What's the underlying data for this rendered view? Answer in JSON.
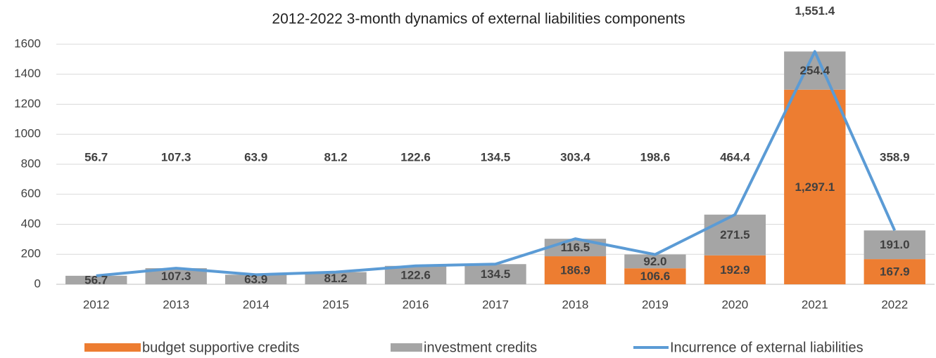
{
  "chart_data": {
    "type": "stacked-bar-line",
    "title": "2012-2022 3-month dynamics of external liabilities components",
    "categories": [
      "2012",
      "2013",
      "2014",
      "2015",
      "2016",
      "2017",
      "2018",
      "2019",
      "2020",
      "2021",
      "2022"
    ],
    "series": [
      {
        "name": "budget supportive credits",
        "color": "#ed7d31",
        "kind": "bar",
        "values": [
          null,
          null,
          null,
          null,
          null,
          null,
          186.9,
          106.6,
          192.9,
          1297.1,
          167.9
        ],
        "value_labels": [
          null,
          null,
          null,
          null,
          null,
          null,
          "186.9",
          "106.6",
          "192.9",
          "1,297.1",
          "167.9"
        ]
      },
      {
        "name": "investment credits",
        "color": "#a5a5a5",
        "kind": "bar",
        "values": [
          56.7,
          107.3,
          63.9,
          81.2,
          122.6,
          134.5,
          116.5,
          92.0,
          271.5,
          254.4,
          191.0
        ],
        "value_labels": [
          "56.7",
          "107.3",
          "63.9",
          "81.2",
          "122.6",
          "134.5",
          "116.5",
          "92.0",
          "271.5",
          "254.4",
          "191.0"
        ]
      },
      {
        "name": "Incurrence of external liabilities",
        "color": "#5b9bd5",
        "kind": "line",
        "values": [
          56.7,
          107.3,
          63.9,
          81.2,
          122.6,
          134.5,
          303.4,
          198.6,
          464.4,
          1551.4,
          358.9
        ],
        "value_labels": [
          "56.7",
          "107.3",
          "63.9",
          "81.2",
          "122.6",
          "134.5",
          "303.4",
          "198.6",
          "464.4",
          "1,551.4",
          "358.9"
        ]
      }
    ],
    "ylim": [
      0,
      1600
    ],
    "yticks": [
      0,
      200,
      400,
      600,
      800,
      1000,
      1200,
      1400,
      1600
    ],
    "grid": true,
    "legend": "bottom"
  }
}
